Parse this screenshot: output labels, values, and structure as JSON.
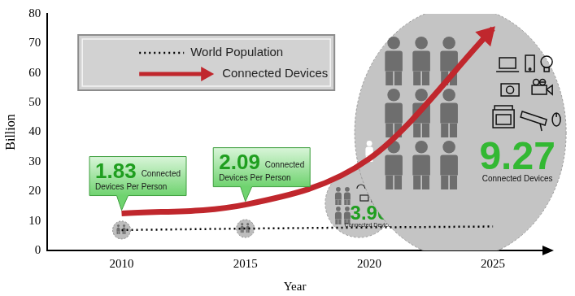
{
  "chart_data": {
    "type": "line",
    "x_label": "Year",
    "y_label": "Billion",
    "x": [
      2010,
      2015,
      2020,
      2025
    ],
    "series": [
      {
        "name": "World Population",
        "color": "#000000",
        "line_style": "dotted",
        "marker": "none",
        "values": [
          6.9,
          7.4,
          7.8,
          8.1
        ]
      },
      {
        "name": "Connected Devices",
        "color": "#c0272d",
        "line_style": "solid",
        "marker": "arrow",
        "values": [
          12.5,
          15.5,
          31,
          75
        ]
      }
    ],
    "xlim": [
      2007,
      2027
    ],
    "xticks": [
      2010,
      2015,
      2020,
      2025
    ],
    "ylim": [
      0,
      80
    ],
    "yticks": [
      0,
      10,
      20,
      30,
      40,
      50,
      60,
      70,
      80
    ],
    "grid": false,
    "legend": "upper left",
    "annotations": [
      {
        "x": 2010,
        "value": 1.83,
        "label": "Connected Devices Per Person"
      },
      {
        "x": 2015,
        "value": 2.09,
        "label": "Connected Devices Per Person"
      },
      {
        "x": 2020,
        "value": 3.96,
        "label": "Connected Devices"
      },
      {
        "x": 2025,
        "value": 9.27,
        "label": "Connected Devices"
      }
    ]
  }
}
